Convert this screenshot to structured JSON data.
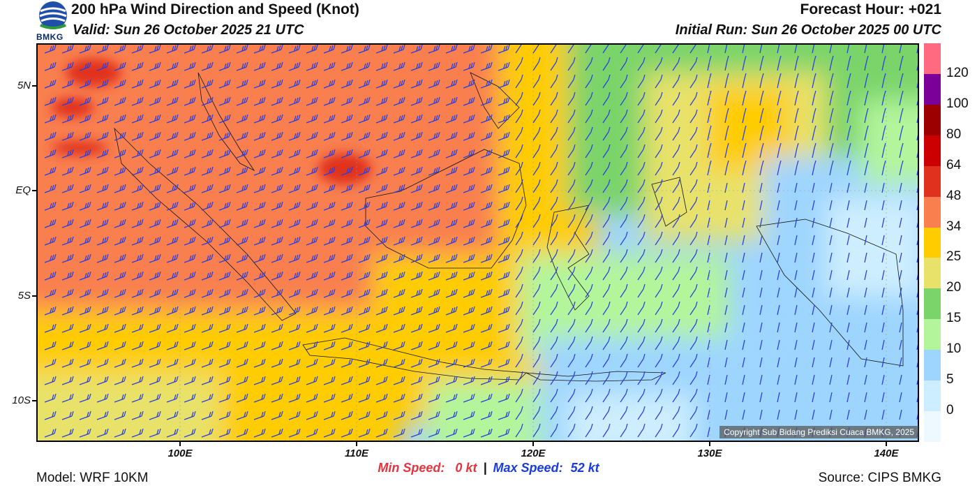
{
  "header": {
    "logo_text": "BMKG",
    "title": "200 hPa Wind Direction and Speed (Knot)",
    "valid": "Valid: Sun 26 October 2025 21 UTC",
    "forecast_hour": "Forecast Hour: +021",
    "initial_run": "Initial Run: Sun 26 October 2025 00 UTC"
  },
  "map": {
    "lat_labels": [
      "5N",
      "EQ",
      "5S",
      "10S"
    ],
    "lon_labels": [
      "100E",
      "110E",
      "120E",
      "130E",
      "140E"
    ],
    "copyright": "Copyright Sub Bidang Prediksi Cuaca BMKG, 2025"
  },
  "colorbar": {
    "unit": "Knot",
    "labels": [
      "120",
      "100",
      "80",
      "64",
      "48",
      "34",
      "25",
      "20",
      "15",
      "10",
      "5",
      "0"
    ],
    "colors": [
      "#ff6a80",
      "#7b0099",
      "#9c0000",
      "#cc0000",
      "#e0301e",
      "#f97f4f",
      "#ffcc00",
      "#e8e26a",
      "#7ad46a",
      "#b2f59b",
      "#9ed5ff",
      "#cdeeff",
      "#eef8ff"
    ]
  },
  "footer": {
    "min_speed_label": "Min Speed:",
    "min_speed_value": "0 kt",
    "separator": "|",
    "max_speed_label": "Max Speed:",
    "max_speed_value": "52 kt",
    "model": "Model: WRF 10KM",
    "source": "Source: CIPS BMKG"
  }
}
